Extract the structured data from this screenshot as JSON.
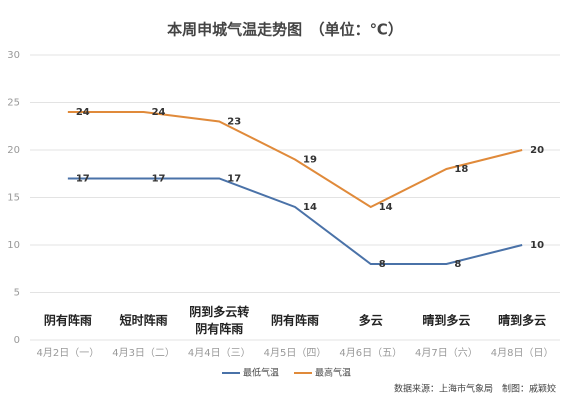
{
  "chart_data": {
    "type": "line",
    "title": "本周申城气温走势图　（单位：℃）",
    "categories": [
      "4月2日（一）",
      "4月3日（二）",
      "4月4日（三）",
      "4月5日（四）",
      "4月6日（五）",
      "4月7日（六）",
      "4月8日（日）"
    ],
    "weather": [
      [
        "阴有阵雨"
      ],
      [
        "短时阵雨"
      ],
      [
        "阴到多云转",
        "阴有阵雨"
      ],
      [
        "阴有阵雨"
      ],
      [
        "多云"
      ],
      [
        "晴到多云"
      ],
      [
        "晴到多云"
      ]
    ],
    "series": [
      {
        "name": "最低气温",
        "color": "#4a72a8",
        "values": [
          17,
          17,
          17,
          14,
          8,
          8,
          10
        ]
      },
      {
        "name": "最高气温",
        "color": "#e08a3a",
        "values": [
          24,
          24,
          23,
          19,
          14,
          18,
          20
        ]
      }
    ],
    "ylim": [
      0,
      30
    ],
    "yticks": [
      0,
      5,
      10,
      15,
      20,
      25,
      30
    ],
    "grid": true,
    "source": "数据来源：上海市气象局　制图：戚颖姣"
  }
}
